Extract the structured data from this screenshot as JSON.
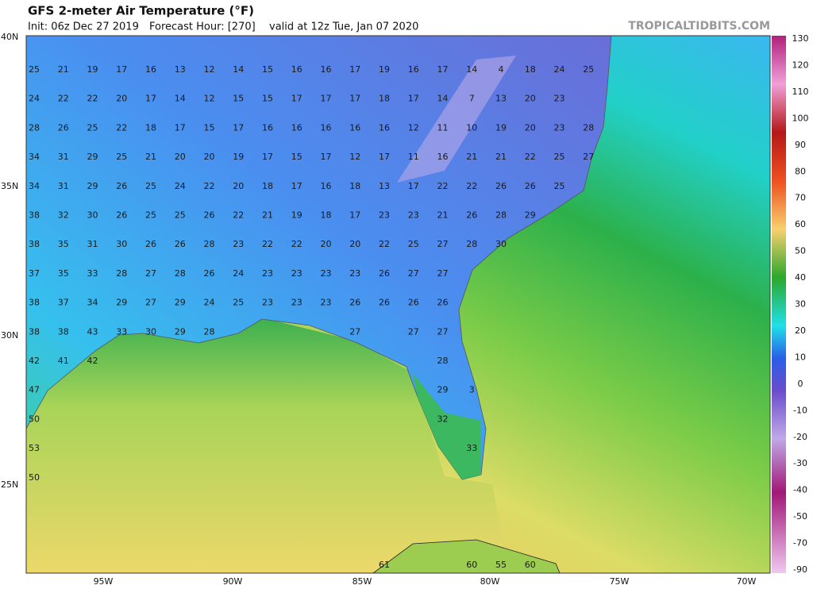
{
  "header": {
    "title": "GFS 2-meter Air Temperature (°F)",
    "init": "Init: 06z Dec 27 2019",
    "forecast_hour": "Forecast Hour: [270]",
    "valid": "valid at 12z Tue, Jan 07 2020",
    "site": "TROPICALTIDBITS.COM"
  },
  "axes": {
    "lat_labels": [
      "40N",
      "35N",
      "30N",
      "25N"
    ],
    "lon_labels": [
      "95W",
      "90W",
      "85W",
      "80W",
      "75W",
      "70W"
    ]
  },
  "colorbar": {
    "labels": [
      130,
      120,
      110,
      100,
      90,
      80,
      70,
      60,
      50,
      40,
      30,
      20,
      10,
      0,
      -10,
      -20,
      -30,
      -40,
      -50,
      -70,
      -90
    ]
  },
  "stations": {
    "rows": [
      [
        25,
        21,
        19,
        17,
        16,
        13,
        12,
        14,
        15,
        16,
        16,
        17,
        19,
        16,
        17,
        14,
        4,
        18,
        24,
        25
      ],
      [
        24,
        22,
        22,
        20,
        17,
        14,
        12,
        15,
        15,
        17,
        17,
        17,
        18,
        17,
        14,
        7,
        13,
        20,
        23,
        null
      ],
      [
        28,
        26,
        25,
        22,
        18,
        17,
        15,
        17,
        16,
        16,
        16,
        16,
        16,
        12,
        11,
        10,
        19,
        20,
        23,
        28
      ],
      [
        34,
        31,
        29,
        25,
        21,
        20,
        20,
        19,
        17,
        15,
        17,
        12,
        17,
        11,
        16,
        21,
        21,
        22,
        25,
        27
      ],
      [
        34,
        31,
        29,
        26,
        25,
        24,
        22,
        20,
        18,
        17,
        16,
        18,
        13,
        17,
        22,
        22,
        26,
        26,
        25,
        null
      ],
      [
        38,
        32,
        30,
        26,
        25,
        25,
        26,
        22,
        21,
        19,
        18,
        17,
        23,
        23,
        21,
        26,
        28,
        29,
        null,
        null
      ],
      [
        38,
        35,
        31,
        30,
        26,
        26,
        28,
        23,
        22,
        22,
        20,
        20,
        22,
        25,
        27,
        28,
        30,
        null,
        null,
        null
      ],
      [
        37,
        35,
        33,
        28,
        27,
        28,
        26,
        24,
        23,
        23,
        23,
        23,
        26,
        27,
        27,
        null,
        null,
        null,
        null,
        null
      ],
      [
        38,
        37,
        34,
        29,
        27,
        29,
        24,
        25,
        23,
        23,
        23,
        26,
        26,
        26,
        26,
        null,
        null,
        null,
        null,
        null
      ],
      [
        38,
        38,
        43,
        33,
        30,
        29,
        28,
        null,
        null,
        null,
        null,
        27,
        null,
        27,
        27,
        null,
        null,
        null,
        null,
        null
      ],
      [
        42,
        41,
        42,
        null,
        null,
        null,
        null,
        null,
        null,
        null,
        null,
        null,
        null,
        null,
        28,
        null,
        null,
        null,
        null,
        null
      ],
      [
        47,
        null,
        null,
        null,
        null,
        null,
        null,
        null,
        null,
        null,
        null,
        null,
        null,
        null,
        29,
        3,
        null,
        null,
        null,
        null
      ],
      [
        50,
        null,
        null,
        null,
        null,
        null,
        null,
        null,
        null,
        null,
        null,
        null,
        null,
        null,
        32,
        null,
        null,
        null,
        null,
        null
      ],
      [
        53,
        null,
        null,
        null,
        null,
        null,
        null,
        null,
        null,
        null,
        null,
        null,
        null,
        null,
        null,
        33,
        null,
        null,
        null,
        null
      ],
      [
        50,
        null,
        null,
        null,
        null,
        null,
        null,
        null,
        null,
        null,
        null,
        null,
        null,
        null,
        null,
        null,
        null,
        null,
        null,
        null
      ],
      [
        null,
        null,
        null,
        null,
        null,
        null,
        null,
        null,
        null,
        null,
        null,
        null,
        null,
        null,
        null,
        null,
        null,
        null,
        null,
        null
      ],
      [
        null,
        null,
        null,
        null,
        null,
        null,
        null,
        null,
        null,
        null,
        null,
        null,
        null,
        null,
        null,
        null,
        null,
        null,
        null,
        null
      ],
      [
        null,
        null,
        null,
        null,
        null,
        null,
        null,
        null,
        null,
        null,
        null,
        null,
        61,
        null,
        null,
        60,
        55,
        60,
        null,
        null
      ]
    ]
  }
}
